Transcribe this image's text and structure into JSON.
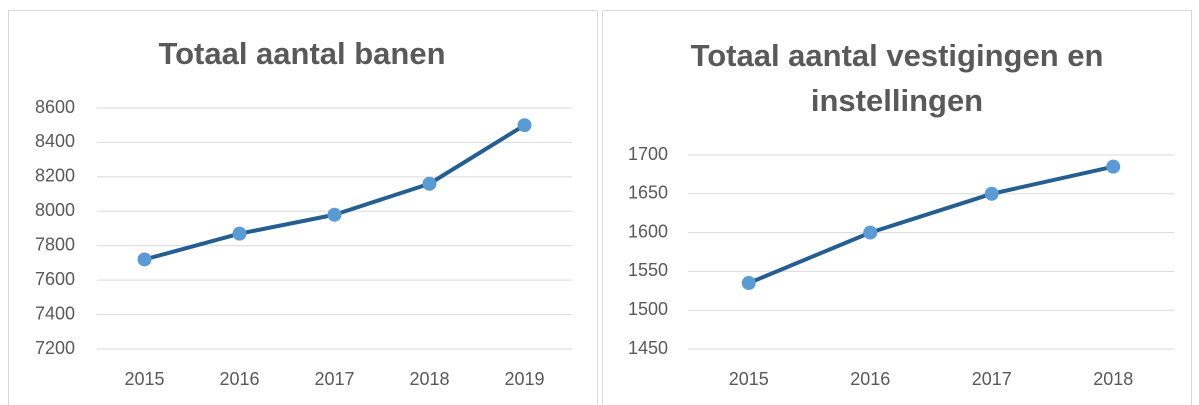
{
  "chart_data": [
    {
      "type": "line",
      "title": "Totaal aantal banen",
      "categories": [
        "2015",
        "2016",
        "2017",
        "2018",
        "2019"
      ],
      "series": [
        {
          "color": "#255e91",
          "marker_color": "#5b9bd5",
          "values": [
            7720,
            7870,
            7980,
            8160,
            8500
          ]
        }
      ],
      "ylim": [
        7200,
        8600
      ],
      "yticks": [
        7200,
        7400,
        7600,
        7800,
        8000,
        8200,
        8400,
        8600
      ],
      "grid": true
    },
    {
      "type": "line",
      "title": "Totaal aantal vestigingen en instellingen",
      "categories": [
        "2015",
        "2016",
        "2017",
        "2018"
      ],
      "series": [
        {
          "color": "#255e91",
          "marker_color": "#5b9bd5",
          "values": [
            1535,
            1600,
            1650,
            1685
          ]
        }
      ],
      "ylim": [
        1450,
        1700
      ],
      "yticks": [
        1450,
        1500,
        1550,
        1600,
        1650,
        1700
      ],
      "grid": true
    }
  ]
}
